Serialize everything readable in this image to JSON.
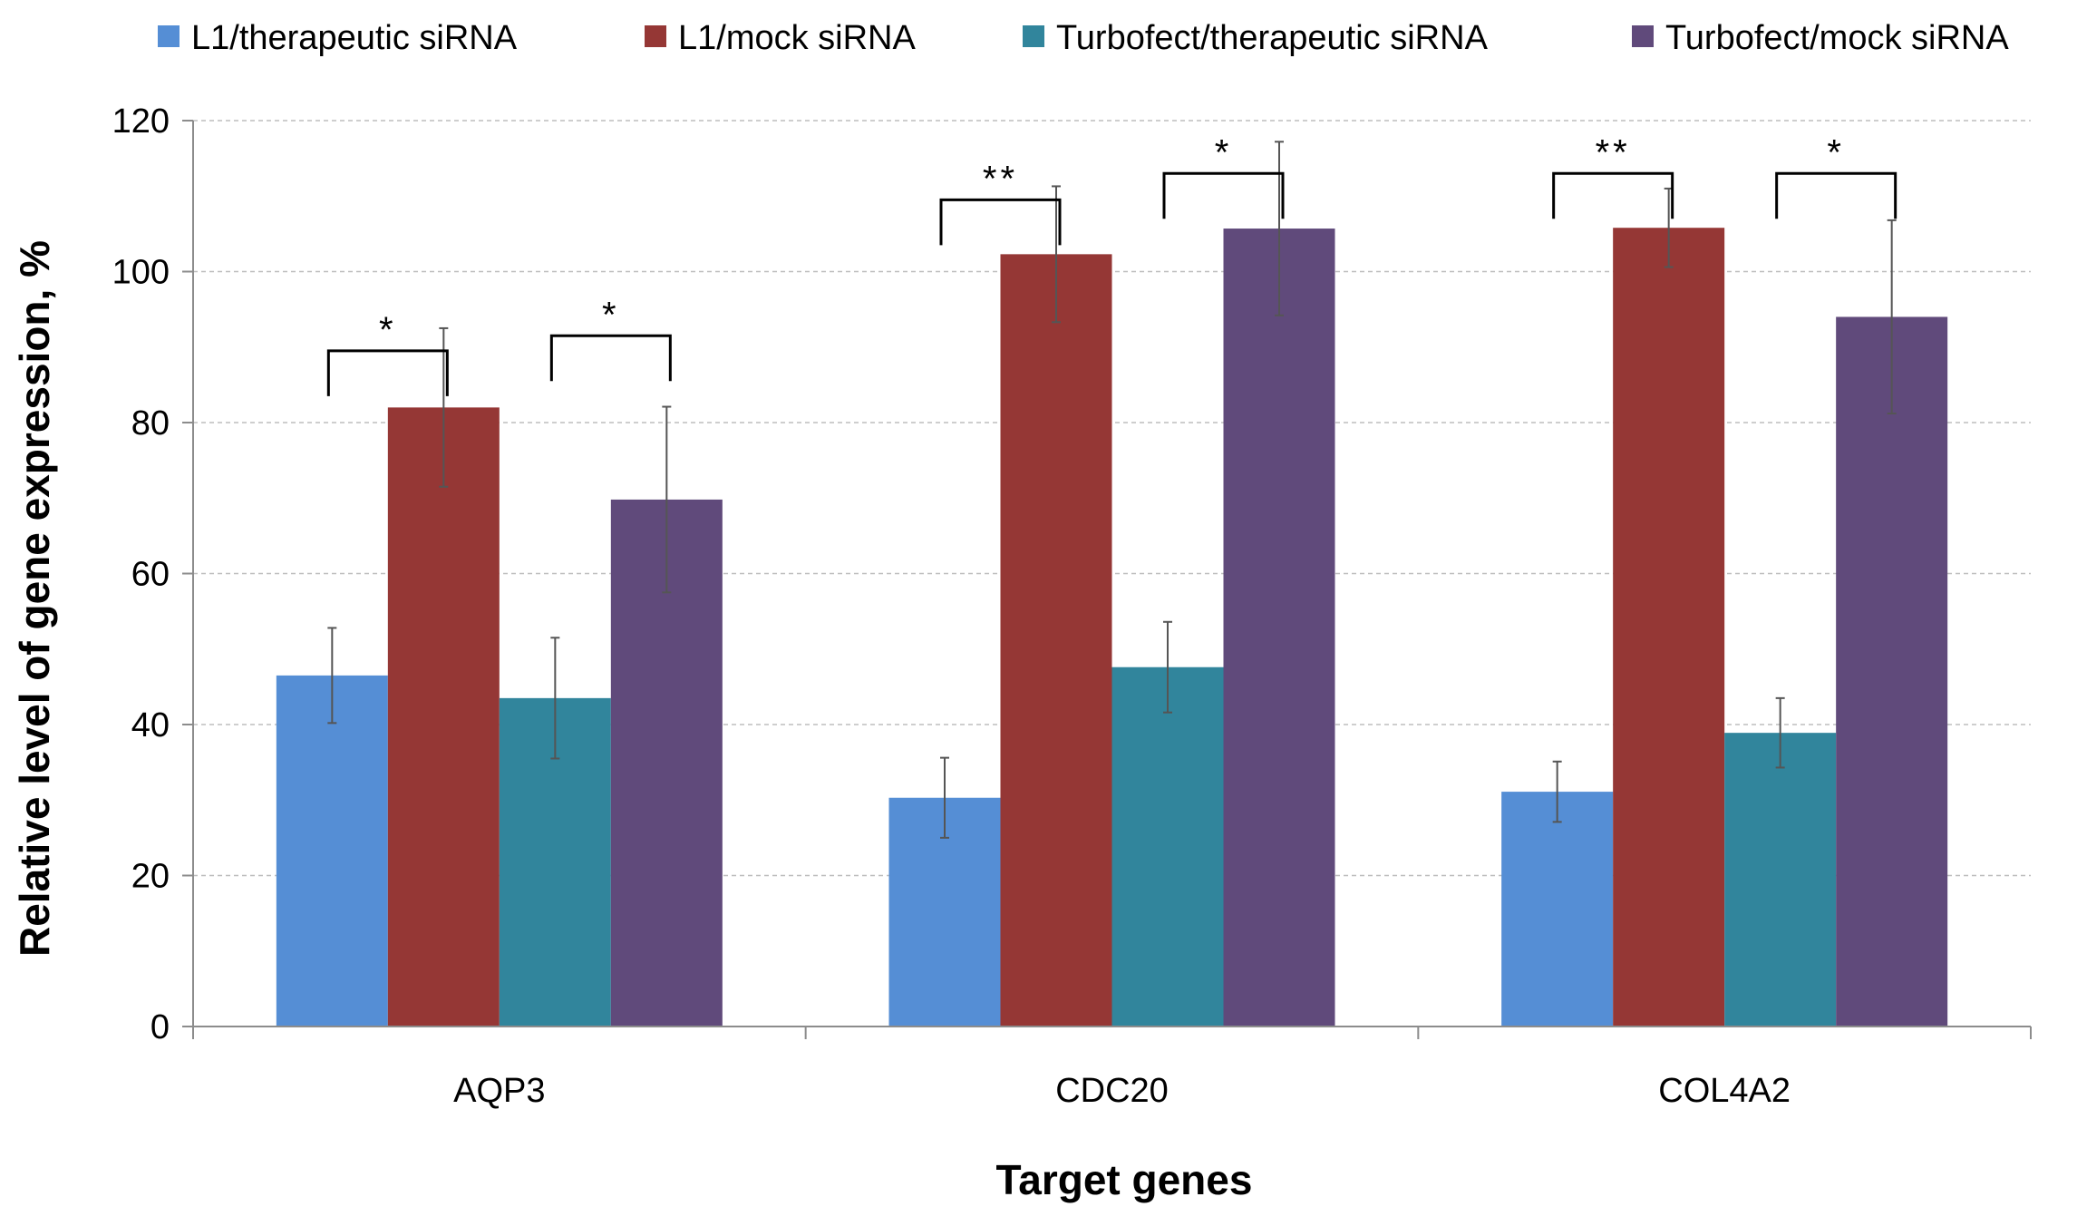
{
  "chart_data": {
    "type": "bar",
    "title": "",
    "xlabel": "Target genes",
    "ylabel": "Relative level of gene expression, %",
    "ylim": [
      0,
      120
    ],
    "yticks": [
      "0",
      "20",
      "40",
      "60",
      "80",
      "100",
      "120"
    ],
    "ytick_values": [
      0,
      20,
      40,
      60,
      80,
      100,
      120
    ],
    "grid": true,
    "legend_position": "top",
    "categories": [
      "AQP3",
      "CDC20",
      "COL4A2"
    ],
    "series": [
      {
        "name": "L1/therapeutic siRNA",
        "color": "#558ED5",
        "values": [
          46.5,
          30.3,
          31.1
        ],
        "errors": [
          6.3,
          5.3,
          4.0
        ]
      },
      {
        "name": "L1/mock siRNA",
        "color": "#953735",
        "values": [
          82.0,
          102.3,
          105.8
        ],
        "errors": [
          10.5,
          9.0,
          5.2
        ]
      },
      {
        "name": "Turbofect/therapeutic siRNA",
        "color": "#31859C",
        "values": [
          43.5,
          47.6,
          38.9
        ],
        "errors": [
          8.0,
          6.0,
          4.6
        ]
      },
      {
        "name": "Turbofect/mock siRNA",
        "color": "#604A7B",
        "values": [
          69.8,
          105.7,
          94.0
        ],
        "errors": [
          12.3,
          11.5,
          12.8
        ]
      }
    ],
    "significance": [
      {
        "category": 0,
        "from": 0,
        "to": 1,
        "label": "*",
        "level": 89.5
      },
      {
        "category": 0,
        "from": 2,
        "to": 3,
        "label": "*",
        "level": 91.5
      },
      {
        "category": 1,
        "from": 0,
        "to": 1,
        "label": "**",
        "level": 109.5
      },
      {
        "category": 1,
        "from": 2,
        "to": 3,
        "label": "*",
        "level": 113.0
      },
      {
        "category": 2,
        "from": 0,
        "to": 1,
        "label": "**",
        "level": 113.0
      },
      {
        "category": 2,
        "from": 2,
        "to": 3,
        "label": "*",
        "level": 113.0
      }
    ]
  }
}
